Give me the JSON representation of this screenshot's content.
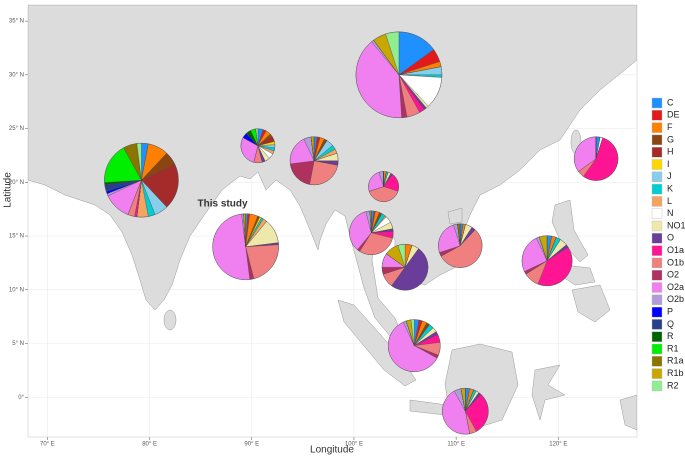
{
  "chart_data": {
    "type": "pie-map",
    "xlabel": "Longitude",
    "ylabel": "Latitude",
    "xlim": [
      68.1,
      127.7
    ],
    "ylim": [
      -3.7,
      36.5
    ],
    "xticks": [
      {
        "value": 70,
        "label": "70° E"
      },
      {
        "value": 80,
        "label": "80° E"
      },
      {
        "value": 90,
        "label": "90° E"
      },
      {
        "value": 100,
        "label": "100° E"
      },
      {
        "value": 110,
        "label": "110° E"
      },
      {
        "value": 120,
        "label": "120° E"
      }
    ],
    "yticks": [
      {
        "value": 0,
        "label": "0°"
      },
      {
        "value": 5,
        "label": "5° N"
      },
      {
        "value": 10,
        "label": "10° N"
      },
      {
        "value": 15,
        "label": "15° N"
      },
      {
        "value": 20,
        "label": "20° N"
      },
      {
        "value": 25,
        "label": "25° N"
      },
      {
        "value": 30,
        "label": "30° N"
      },
      {
        "value": 35,
        "label": "35° N"
      }
    ],
    "grid": true,
    "legend_position": "right",
    "groups": [
      {
        "name": "C",
        "color": "#1e90ff"
      },
      {
        "name": "DE",
        "color": "#e31a1c"
      },
      {
        "name": "F",
        "color": "#ff7f00"
      },
      {
        "name": "G",
        "color": "#8b4513"
      },
      {
        "name": "H",
        "color": "#a52a2a"
      },
      {
        "name": "I",
        "color": "#ffd700"
      },
      {
        "name": "J",
        "color": "#87ceeb"
      },
      {
        "name": "K",
        "color": "#00ced1"
      },
      {
        "name": "L",
        "color": "#f4a460"
      },
      {
        "name": "N",
        "color": "#ffffff"
      },
      {
        "name": "NO1",
        "color": "#eee8aa"
      },
      {
        "name": "O",
        "color": "#6a3d9a"
      },
      {
        "name": "O1a",
        "color": "#ff1493"
      },
      {
        "name": "O1b",
        "color": "#f08080"
      },
      {
        "name": "O2",
        "color": "#b03060"
      },
      {
        "name": "O2a",
        "color": "#f080f0"
      },
      {
        "name": "O2b",
        "color": "#b19cd9"
      },
      {
        "name": "P",
        "color": "#0000ff"
      },
      {
        "name": "Q",
        "color": "#27408b"
      },
      {
        "name": "R",
        "color": "#006400"
      },
      {
        "name": "R1",
        "color": "#00ee00"
      },
      {
        "name": "R1a",
        "color": "#8b7500"
      },
      {
        "name": "R1b",
        "color": "#c8a800"
      },
      {
        "name": "R2",
        "color": "#90ee90"
      }
    ],
    "pies": [
      {
        "lon": 79.2,
        "lat": 20.2,
        "size": 137,
        "values": [
          3,
          0,
          9,
          6,
          20,
          0,
          6,
          3,
          5,
          0,
          0,
          0,
          1,
          3,
          0,
          12,
          1,
          1,
          3,
          1,
          18,
          6,
          0,
          2
        ]
      },
      {
        "lon": 89.4,
        "lat": 14.0,
        "size": 109,
        "label": "This study",
        "values": [
          1,
          1,
          4,
          1,
          0,
          1,
          0,
          1,
          2,
          0,
          12,
          1,
          0,
          22,
          2,
          50,
          1,
          0,
          0,
          0,
          0,
          0,
          1,
          0
        ]
      },
      {
        "lon": 90.6,
        "lat": 23.4,
        "size": 29,
        "values": [
          5,
          3,
          5,
          3,
          5,
          3,
          3,
          3,
          3,
          5,
          5,
          3,
          0,
          8,
          0,
          29,
          0,
          5,
          0,
          5,
          5,
          0,
          0,
          2
        ]
      },
      {
        "lon": 96.1,
        "lat": 22.0,
        "size": 58,
        "values": [
          2,
          2,
          3,
          2,
          0,
          0,
          5,
          3,
          3,
          0,
          5,
          3,
          0,
          25,
          20,
          20,
          5,
          0,
          0,
          0,
          0,
          0,
          2,
          0
        ]
      },
      {
        "lon": 104.4,
        "lat": 30.0,
        "size": 185,
        "values": [
          15,
          5,
          2,
          0,
          0,
          0,
          3,
          1,
          0,
          12,
          1,
          1,
          2,
          5,
          2,
          40,
          1,
          0,
          0,
          0,
          0,
          0,
          5,
          5
        ]
      },
      {
        "lon": 102.9,
        "lat": 19.6,
        "size": 23,
        "values": [
          0,
          0,
          3,
          0,
          0,
          0,
          0,
          2,
          0,
          0,
          3,
          2,
          20,
          40,
          0,
          25,
          5,
          0,
          0,
          0,
          0,
          0,
          0,
          0
        ]
      },
      {
        "lon": 101.7,
        "lat": 15.3,
        "size": 48,
        "values": [
          2,
          1,
          3,
          2,
          0,
          0,
          0,
          3,
          1,
          5,
          5,
          2,
          5,
          30,
          2,
          35,
          3,
          0,
          0,
          0,
          0,
          0,
          1,
          0
        ]
      },
      {
        "lon": 105.0,
        "lat": 12.1,
        "size": 53,
        "values": [
          0,
          0,
          5,
          0,
          0,
          0,
          0,
          0,
          0,
          0,
          5,
          50,
          0,
          10,
          5,
          10,
          0,
          0,
          0,
          0,
          0,
          0,
          10,
          5
        ]
      },
      {
        "lon": 110.4,
        "lat": 14.1,
        "size": 48,
        "values": [
          2,
          0,
          2,
          0,
          0,
          0,
          0,
          0,
          0,
          0,
          5,
          3,
          0,
          55,
          3,
          25,
          3,
          0,
          0,
          0,
          0,
          2,
          0,
          0
        ]
      },
      {
        "lon": 123.7,
        "lat": 22.2,
        "size": 48,
        "values": [
          3,
          0,
          0,
          0,
          0,
          0,
          0,
          0,
          0,
          2,
          0,
          0,
          55,
          5,
          0,
          35,
          0,
          0,
          0,
          0,
          0,
          0,
          0,
          0
        ]
      },
      {
        "lon": 118.9,
        "lat": 12.7,
        "size": 63,
        "values": [
          3,
          0,
          3,
          0,
          0,
          0,
          0,
          3,
          0,
          0,
          5,
          2,
          40,
          10,
          2,
          25,
          2,
          0,
          0,
          0,
          0,
          0,
          5,
          0
        ]
      },
      {
        "lon": 105.9,
        "lat": 4.8,
        "size": 68,
        "values": [
          3,
          2,
          3,
          2,
          0,
          0,
          0,
          3,
          0,
          0,
          3,
          2,
          5,
          8,
          2,
          60,
          2,
          0,
          0,
          0,
          0,
          0,
          3,
          2
        ]
      },
      {
        "lon": 110.9,
        "lat": -1.3,
        "size": 53,
        "values": [
          3,
          0,
          3,
          0,
          0,
          0,
          0,
          2,
          0,
          0,
          2,
          2,
          30,
          5,
          0,
          45,
          5,
          0,
          0,
          0,
          0,
          0,
          3,
          0
        ]
      }
    ]
  }
}
